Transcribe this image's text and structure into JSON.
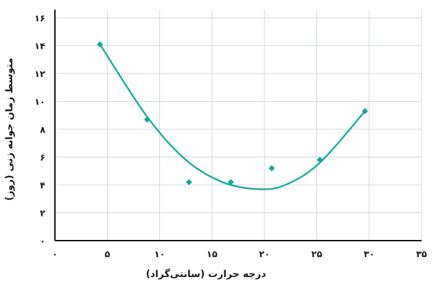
{
  "chart_data": {
    "type": "scatter",
    "xlabel": "درجه حرارت (سانتی‌گراد)",
    "ylabel": "متوسط زمان جوانه زنی (روز)",
    "xlim": [
      0,
      35
    ],
    "ylim": [
      0,
      16
    ],
    "xticks": [
      0,
      5,
      10,
      15,
      20,
      25,
      30,
      35
    ],
    "xtick_labels": [
      "۰",
      "۵",
      "۱۰",
      "۱۵",
      "۲۰",
      "۲۵",
      "۳۰",
      "۳۵"
    ],
    "yticks": [
      0,
      2,
      4,
      6,
      8,
      10,
      12,
      14,
      16
    ],
    "ytick_labels": [
      "۰",
      "۲",
      "۴",
      "۶",
      "۸",
      "۱۰",
      "۱۲",
      "۱۴",
      "۱۶"
    ],
    "grid": true,
    "marker": "diamond",
    "series": [
      {
        "points": [
          {
            "x": 4.3,
            "y": 14.1
          },
          {
            "x": 8.8,
            "y": 8.7
          },
          {
            "x": 12.8,
            "y": 4.2
          },
          {
            "x": 16.8,
            "y": 4.2
          },
          {
            "x": 20.7,
            "y": 5.2
          },
          {
            "x": 25.3,
            "y": 5.8
          },
          {
            "x": 29.6,
            "y": 9.3
          }
        ]
      }
    ],
    "trendline": {
      "type": "curve",
      "color": "#1aad9c",
      "points": [
        {
          "x": 4.3,
          "y": 14.1
        },
        {
          "x": 8.8,
          "y": 8.9
        },
        {
          "x": 12.5,
          "y": 5.8
        },
        {
          "x": 16.0,
          "y": 4.2
        },
        {
          "x": 19.4,
          "y": 3.7
        },
        {
          "x": 22.0,
          "y": 4.0
        },
        {
          "x": 25.3,
          "y": 5.6
        },
        {
          "x": 29.6,
          "y": 9.3
        }
      ]
    },
    "colors": {
      "marker": "#10a898",
      "line": "#1aad9c",
      "grid": "#cfd6dc",
      "axis": "#111111"
    }
  }
}
